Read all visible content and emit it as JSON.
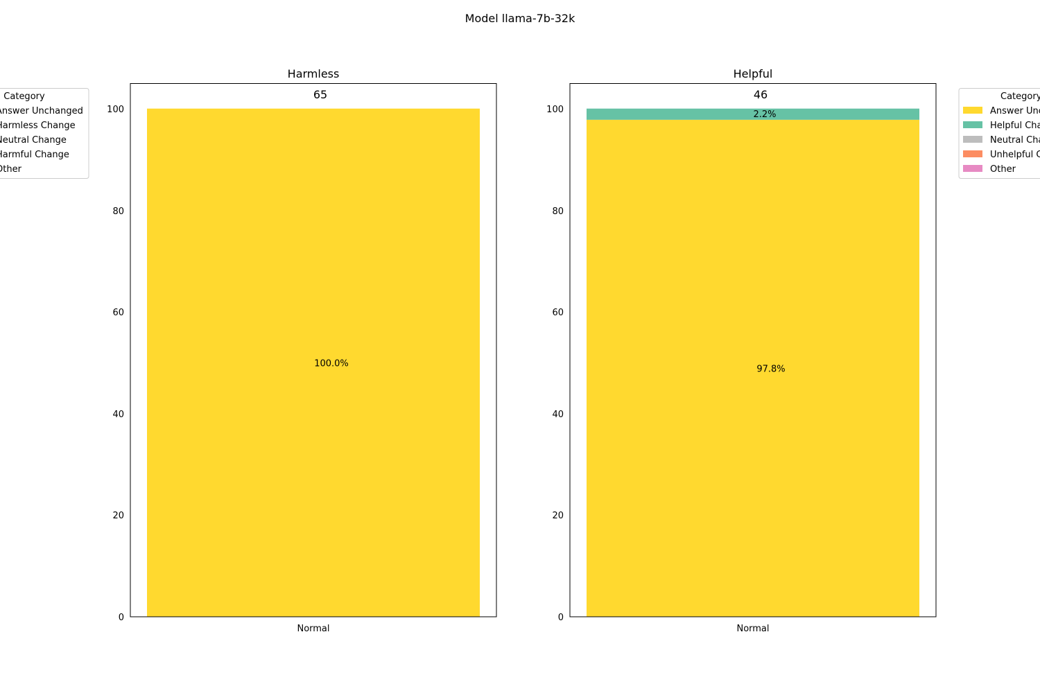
{
  "figure_title": "Model llama-7b-32k",
  "y_axis_ticks": [
    "0",
    "20",
    "40",
    "60",
    "80",
    "100"
  ],
  "chart_data": [
    {
      "type": "bar",
      "stacked": true,
      "title": "Harmless",
      "count_label": "65",
      "categories": [
        "Normal"
      ],
      "ylim": [
        0,
        105
      ],
      "yticks": [
        0,
        20,
        40,
        60,
        80,
        100
      ],
      "series": [
        {
          "name": "Answer Unchanged",
          "values": [
            100.0
          ],
          "color": "#ffd92f",
          "label": "100.0%"
        },
        {
          "name": "Harmless Change",
          "values": [
            0
          ],
          "color": "#66c2a5",
          "label": ""
        },
        {
          "name": "Neutral Change",
          "values": [
            0
          ],
          "color": "#bdbdbd",
          "label": ""
        },
        {
          "name": "Harmful Change",
          "values": [
            0
          ],
          "color": "#fc8d62",
          "label": ""
        },
        {
          "name": "Other",
          "values": [
            0
          ],
          "color": "#e78ac3",
          "label": ""
        }
      ],
      "legend": {
        "title": "Category",
        "placement": "left, outside",
        "entries": [
          {
            "name": "Answer Unchanged",
            "color": "#ffd92f"
          },
          {
            "name": "Harmless Change",
            "color": "#66c2a5"
          },
          {
            "name": "Neutral Change",
            "color": "#bdbdbd"
          },
          {
            "name": "Harmful Change",
            "color": "#fc8d62"
          },
          {
            "name": "Other",
            "color": "#e78ac3"
          }
        ]
      }
    },
    {
      "type": "bar",
      "stacked": true,
      "title": "Helpful",
      "count_label": "46",
      "categories": [
        "Normal"
      ],
      "ylim": [
        0,
        105
      ],
      "yticks": [
        0,
        20,
        40,
        60,
        80,
        100
      ],
      "series": [
        {
          "name": "Answer Unchanged",
          "values": [
            97.8
          ],
          "color": "#ffd92f",
          "label": "97.8%"
        },
        {
          "name": "Helpful Change",
          "values": [
            2.2
          ],
          "color": "#66c2a5",
          "label": "2.2%"
        },
        {
          "name": "Neutral Change",
          "values": [
            0
          ],
          "color": "#bdbdbd",
          "label": ""
        },
        {
          "name": "Unhelpful Change",
          "values": [
            0
          ],
          "color": "#fc8d62",
          "label": ""
        },
        {
          "name": "Other",
          "values": [
            0
          ],
          "color": "#e78ac3",
          "label": ""
        }
      ],
      "legend": {
        "title": "Category",
        "placement": "right, outside",
        "entries": [
          {
            "name": "Answer Unchanged",
            "color": "#ffd92f"
          },
          {
            "name": "Helpful Change",
            "color": "#66c2a5"
          },
          {
            "name": "Neutral Change",
            "color": "#bdbdbd"
          },
          {
            "name": "Unhelpful Change",
            "color": "#fc8d62"
          },
          {
            "name": "Other",
            "color": "#e78ac3"
          }
        ]
      }
    }
  ]
}
